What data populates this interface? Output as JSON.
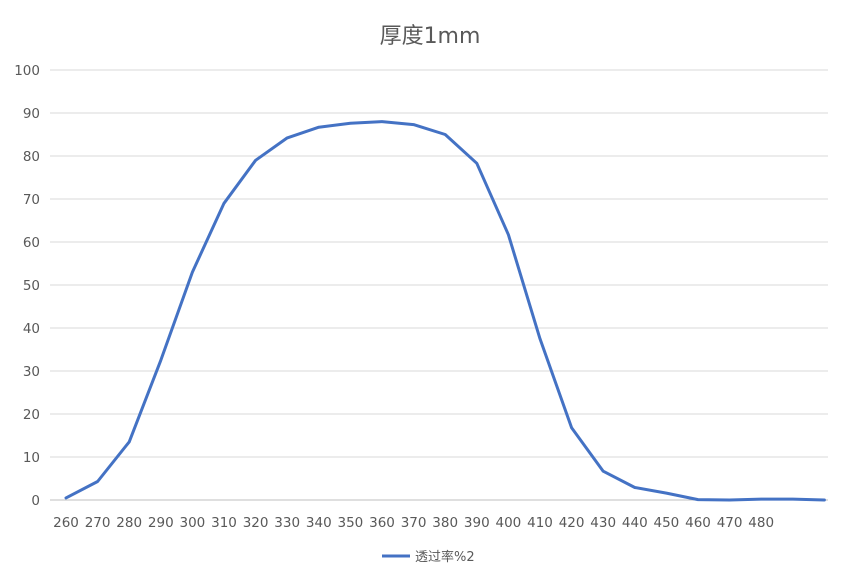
{
  "chart_data": {
    "type": "line",
    "title": "厚度1mm",
    "xlabel": "",
    "ylabel": "",
    "x": [
      260,
      270,
      280,
      290,
      300,
      310,
      320,
      330,
      340,
      350,
      360,
      370,
      380,
      390,
      400,
      410,
      420,
      430,
      440,
      450,
      460,
      470,
      480,
      490,
      500
    ],
    "x_tick_labels": [
      "260",
      "270",
      "280",
      "290",
      "300",
      "310",
      "320",
      "330",
      "340",
      "350",
      "360",
      "370",
      "380",
      "390",
      "400",
      "410",
      "420",
      "430",
      "440",
      "450",
      "460",
      "470",
      "480"
    ],
    "y_ticks": [
      0,
      10,
      20,
      30,
      40,
      50,
      60,
      70,
      80,
      90,
      100
    ],
    "ylim": [
      0,
      100
    ],
    "grid": "horizontal",
    "legend_position": "bottom",
    "series": [
      {
        "name": "透过率%2",
        "color": "#4472C4",
        "values": [
          0.5,
          4.3,
          13.5,
          32.5,
          53,
          69,
          79,
          84.2,
          86.7,
          87.6,
          88,
          87.3,
          85,
          78.3,
          61.7,
          37.5,
          16.8,
          6.7,
          2.9,
          1.6,
          0.1,
          0.0,
          0.2,
          0.2,
          0.0
        ]
      }
    ]
  }
}
